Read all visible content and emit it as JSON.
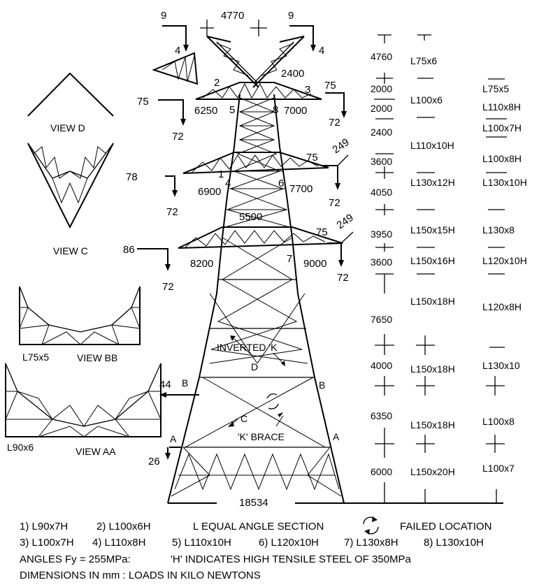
{
  "loads": {
    "top_left_h": "9",
    "top_left_v": "4",
    "top_right_h": "9",
    "top_right_v": "4",
    "top_width": "4770",
    "arm1_left_h": "75",
    "arm1_left_v": "72",
    "arm1_right_h": "75",
    "arm1_right_v": "72",
    "arm2_left_h": "78",
    "arm2_left_v": "72",
    "arm2_right_h": "75",
    "arm2_right_diag": "249",
    "arm2_right_v": "72",
    "arm3_left_h": "86",
    "arm3_left_v": "72",
    "arm3_right_h": "75",
    "arm3_right_diag": "249",
    "arm3_right_v": "72",
    "b_load": "44",
    "a_load": "26"
  },
  "dims": {
    "peak_arm": "2400",
    "arm1_left": "6250",
    "arm1_right": "7000",
    "arm2_left": "6900",
    "arm2_right": "7700",
    "mid_width": "5500",
    "arm3_left": "8200",
    "arm3_right": "9000",
    "base_width": "18534"
  },
  "members": {
    "m1": "1",
    "m2": "2",
    "m3": "3",
    "m4": "4",
    "m5": "5",
    "m6": "6",
    "m7": "7",
    "m8": "8"
  },
  "tower_labels": {
    "inverted_k": "INVERTED 'K",
    "k_brace": "'K' BRACE",
    "d": "D",
    "c": "C",
    "b": "B",
    "a": "A"
  },
  "views": {
    "view_d": "VIEW D",
    "view_c": "VIEW C",
    "view_bb": "VIEW BB",
    "view_aa": "VIEW AA",
    "bb_section": "L75x5",
    "aa_section": "L90x6"
  },
  "panel_heights": [
    "4760",
    "2000",
    "2000",
    "2400",
    "3600",
    "4050",
    "3950",
    "3600",
    "7650",
    "4000",
    "6350",
    "6000"
  ],
  "leg_sections": [
    "L75x6",
    "L100x6",
    "L110x10H",
    "L130x12H",
    "L150x15H",
    "L150x16H",
    "L150x18H",
    "L150x18H",
    "L150x18H",
    "L150x20H"
  ],
  "brace_sections": [
    "L75x5",
    "L110x8H",
    "L100x7H",
    "L100x8H",
    "L130x10H",
    "L130x8",
    "L120x10H",
    "L120x8H",
    "L130x10",
    "L100x8",
    "L100x7"
  ],
  "legend": {
    "r1a": "1) L90x7H",
    "r1b": "2) L100x6H",
    "r1c": "L EQUAL ANGLE SECTION",
    "r1d": "FAILED LOCATION",
    "r2a": "3) L100x7H",
    "r2b": "4) L110x8H",
    "r2c": "5) L110x10H",
    "r2d": "6) L120x10H",
    "r2e": "7) L130x8H",
    "r2f": "8) L130x10H",
    "r3a": "ANGLES Fy = 255MPa:",
    "r3b": "'H' INDICATES HIGH TENSILE STEEL OF 350MPa",
    "r4": "DIMENSIONS IN mm  :  LOADS IN KILO NEWTONS"
  }
}
